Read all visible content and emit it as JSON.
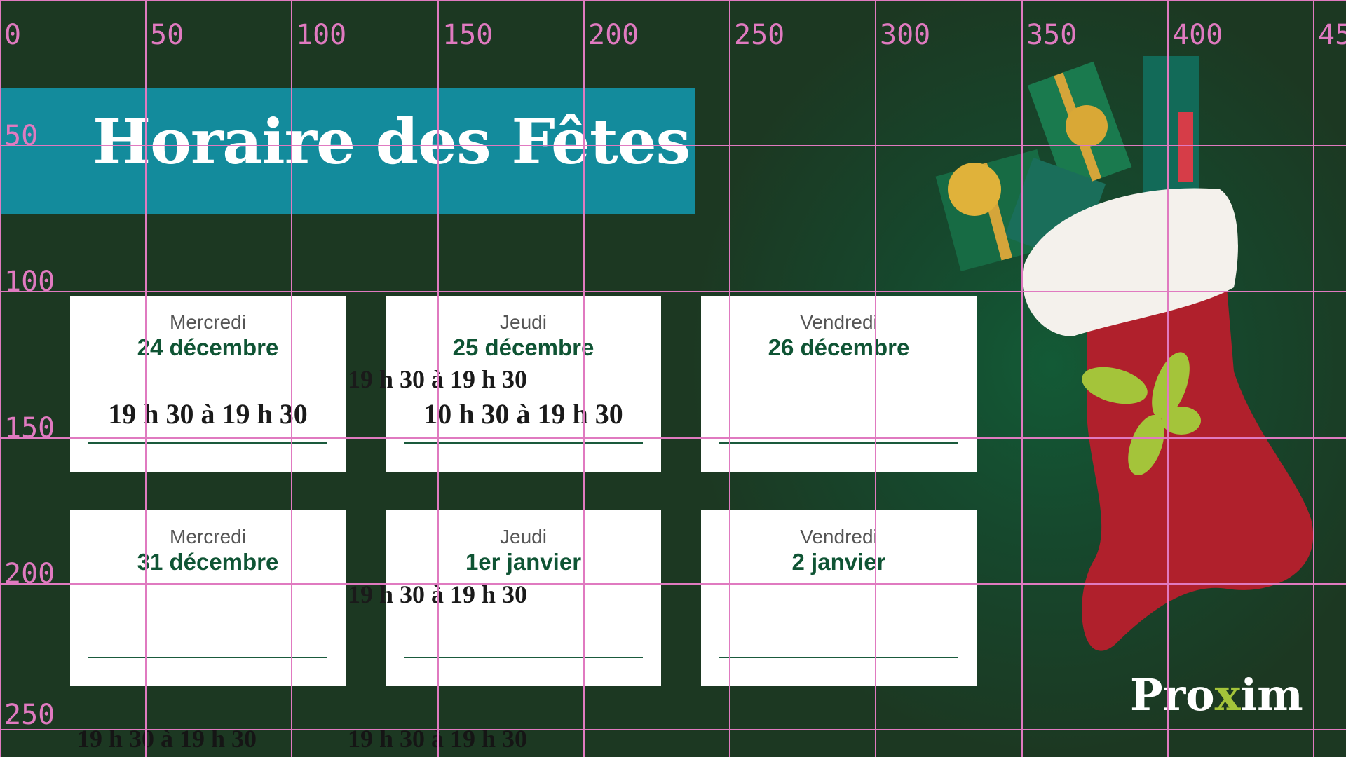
{
  "title": "Horaire des Fêtes",
  "cards": [
    {
      "day": "Mercredi",
      "date": "24 décembre",
      "time": "19 h 30 à 19 h 30"
    },
    {
      "day": "Jeudi",
      "date": "25 décembre",
      "time": "10 h 30 à 19 h 30"
    },
    {
      "day": "Vendredi",
      "date": "26 décembre",
      "time": ""
    },
    {
      "day": "Mercredi",
      "date": "31 décembre",
      "time": ""
    },
    {
      "day": "Jeudi",
      "date": "1er janvier",
      "time": ""
    },
    {
      "day": "Vendredi",
      "date": "2 janvier",
      "time": ""
    }
  ],
  "overlay_times": [
    "19 h 30 à 19 h 30",
    "19 h 30 à 19 h 30",
    "19 h 30 à 19 h 30",
    "19 h 30 à 19 h 30"
  ],
  "grid": {
    "x_labels": [
      "0",
      "50",
      "100",
      "150",
      "200",
      "250",
      "300",
      "350",
      "400",
      "45"
    ],
    "y_labels": [
      "50",
      "100",
      "150",
      "200",
      "250"
    ]
  },
  "logo": {
    "text_before": "Pro",
    "text_mark": "x",
    "text_after": "im"
  },
  "colors": {
    "background": "#1c3822",
    "banner": "#138b9c",
    "date_green": "#0f5434",
    "grid": "#e07ac0",
    "logo_leaf": "#a4c43a"
  }
}
